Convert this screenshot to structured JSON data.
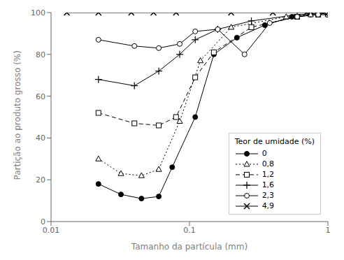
{
  "chart_data": {
    "type": "line",
    "xlabel": "Tamanho da partícula (mm)",
    "ylabel": "Partição ao produto grosso (%)",
    "log": "x",
    "xlim": [
      0.01,
      1.0
    ],
    "xticks": [
      0.01,
      0.1,
      1
    ],
    "ylim": [
      0,
      100
    ],
    "yticks": [
      0,
      20,
      40,
      60,
      80,
      100
    ],
    "grid": false,
    "legend": "lower right",
    "legend_title": "Teor de umidade (%)",
    "series": [
      {
        "name": "0",
        "color": "#000000",
        "marker": "circle",
        "line_style": "solid",
        "x": [
          0.022,
          0.032,
          0.045,
          0.06,
          0.075,
          0.11,
          0.15,
          0.22,
          0.35,
          0.55,
          0.75,
          1.0
        ],
        "values": [
          18,
          13,
          11,
          12,
          26,
          50,
          80,
          88,
          94,
          98,
          99,
          99
        ]
      },
      {
        "name": "0,8",
        "color": "#000000",
        "marker": "open_triangle",
        "line_style": "dotted",
        "x": [
          0.022,
          0.032,
          0.045,
          0.06,
          0.085,
          0.12,
          0.2,
          0.5,
          0.75,
          1.0
        ],
        "values": [
          30,
          23,
          22,
          25,
          48,
          77,
          93,
          98,
          99,
          99
        ]
      },
      {
        "name": "1,2",
        "color": "#000000",
        "marker": "open_square",
        "line_style": "dashed",
        "x": [
          0.022,
          0.04,
          0.06,
          0.08,
          0.11,
          0.15,
          0.28,
          0.6,
          0.85,
          1.0
        ],
        "values": [
          52,
          47,
          46,
          50,
          69,
          81,
          93,
          98,
          99,
          100
        ]
      },
      {
        "name": "1,6",
        "color": "#000000",
        "marker": "plus",
        "line_style": "solid",
        "x": [
          0.022,
          0.04,
          0.06,
          0.085,
          0.11,
          0.16,
          0.28,
          0.6,
          1.0
        ],
        "values": [
          68,
          65,
          72,
          80,
          87,
          92,
          96,
          99,
          100
        ]
      },
      {
        "name": "2,3",
        "color": "#000000",
        "marker": "open_circle",
        "line_style": "solid",
        "x": [
          0.022,
          0.04,
          0.06,
          0.085,
          0.11,
          0.16,
          0.25,
          0.38,
          0.6,
          0.85,
          1.0
        ],
        "values": [
          87,
          84,
          83,
          85,
          91,
          92,
          80,
          95,
          98,
          99,
          100
        ]
      },
      {
        "name": "4,9",
        "color": "#000000",
        "marker": "x",
        "line_style": "solid",
        "x": [
          0.013,
          0.022,
          0.038,
          0.055,
          0.08,
          0.2,
          0.4,
          0.7,
          1.0
        ],
        "values": [
          100,
          100,
          100,
          100,
          100,
          100,
          100,
          100,
          100
        ]
      }
    ]
  }
}
